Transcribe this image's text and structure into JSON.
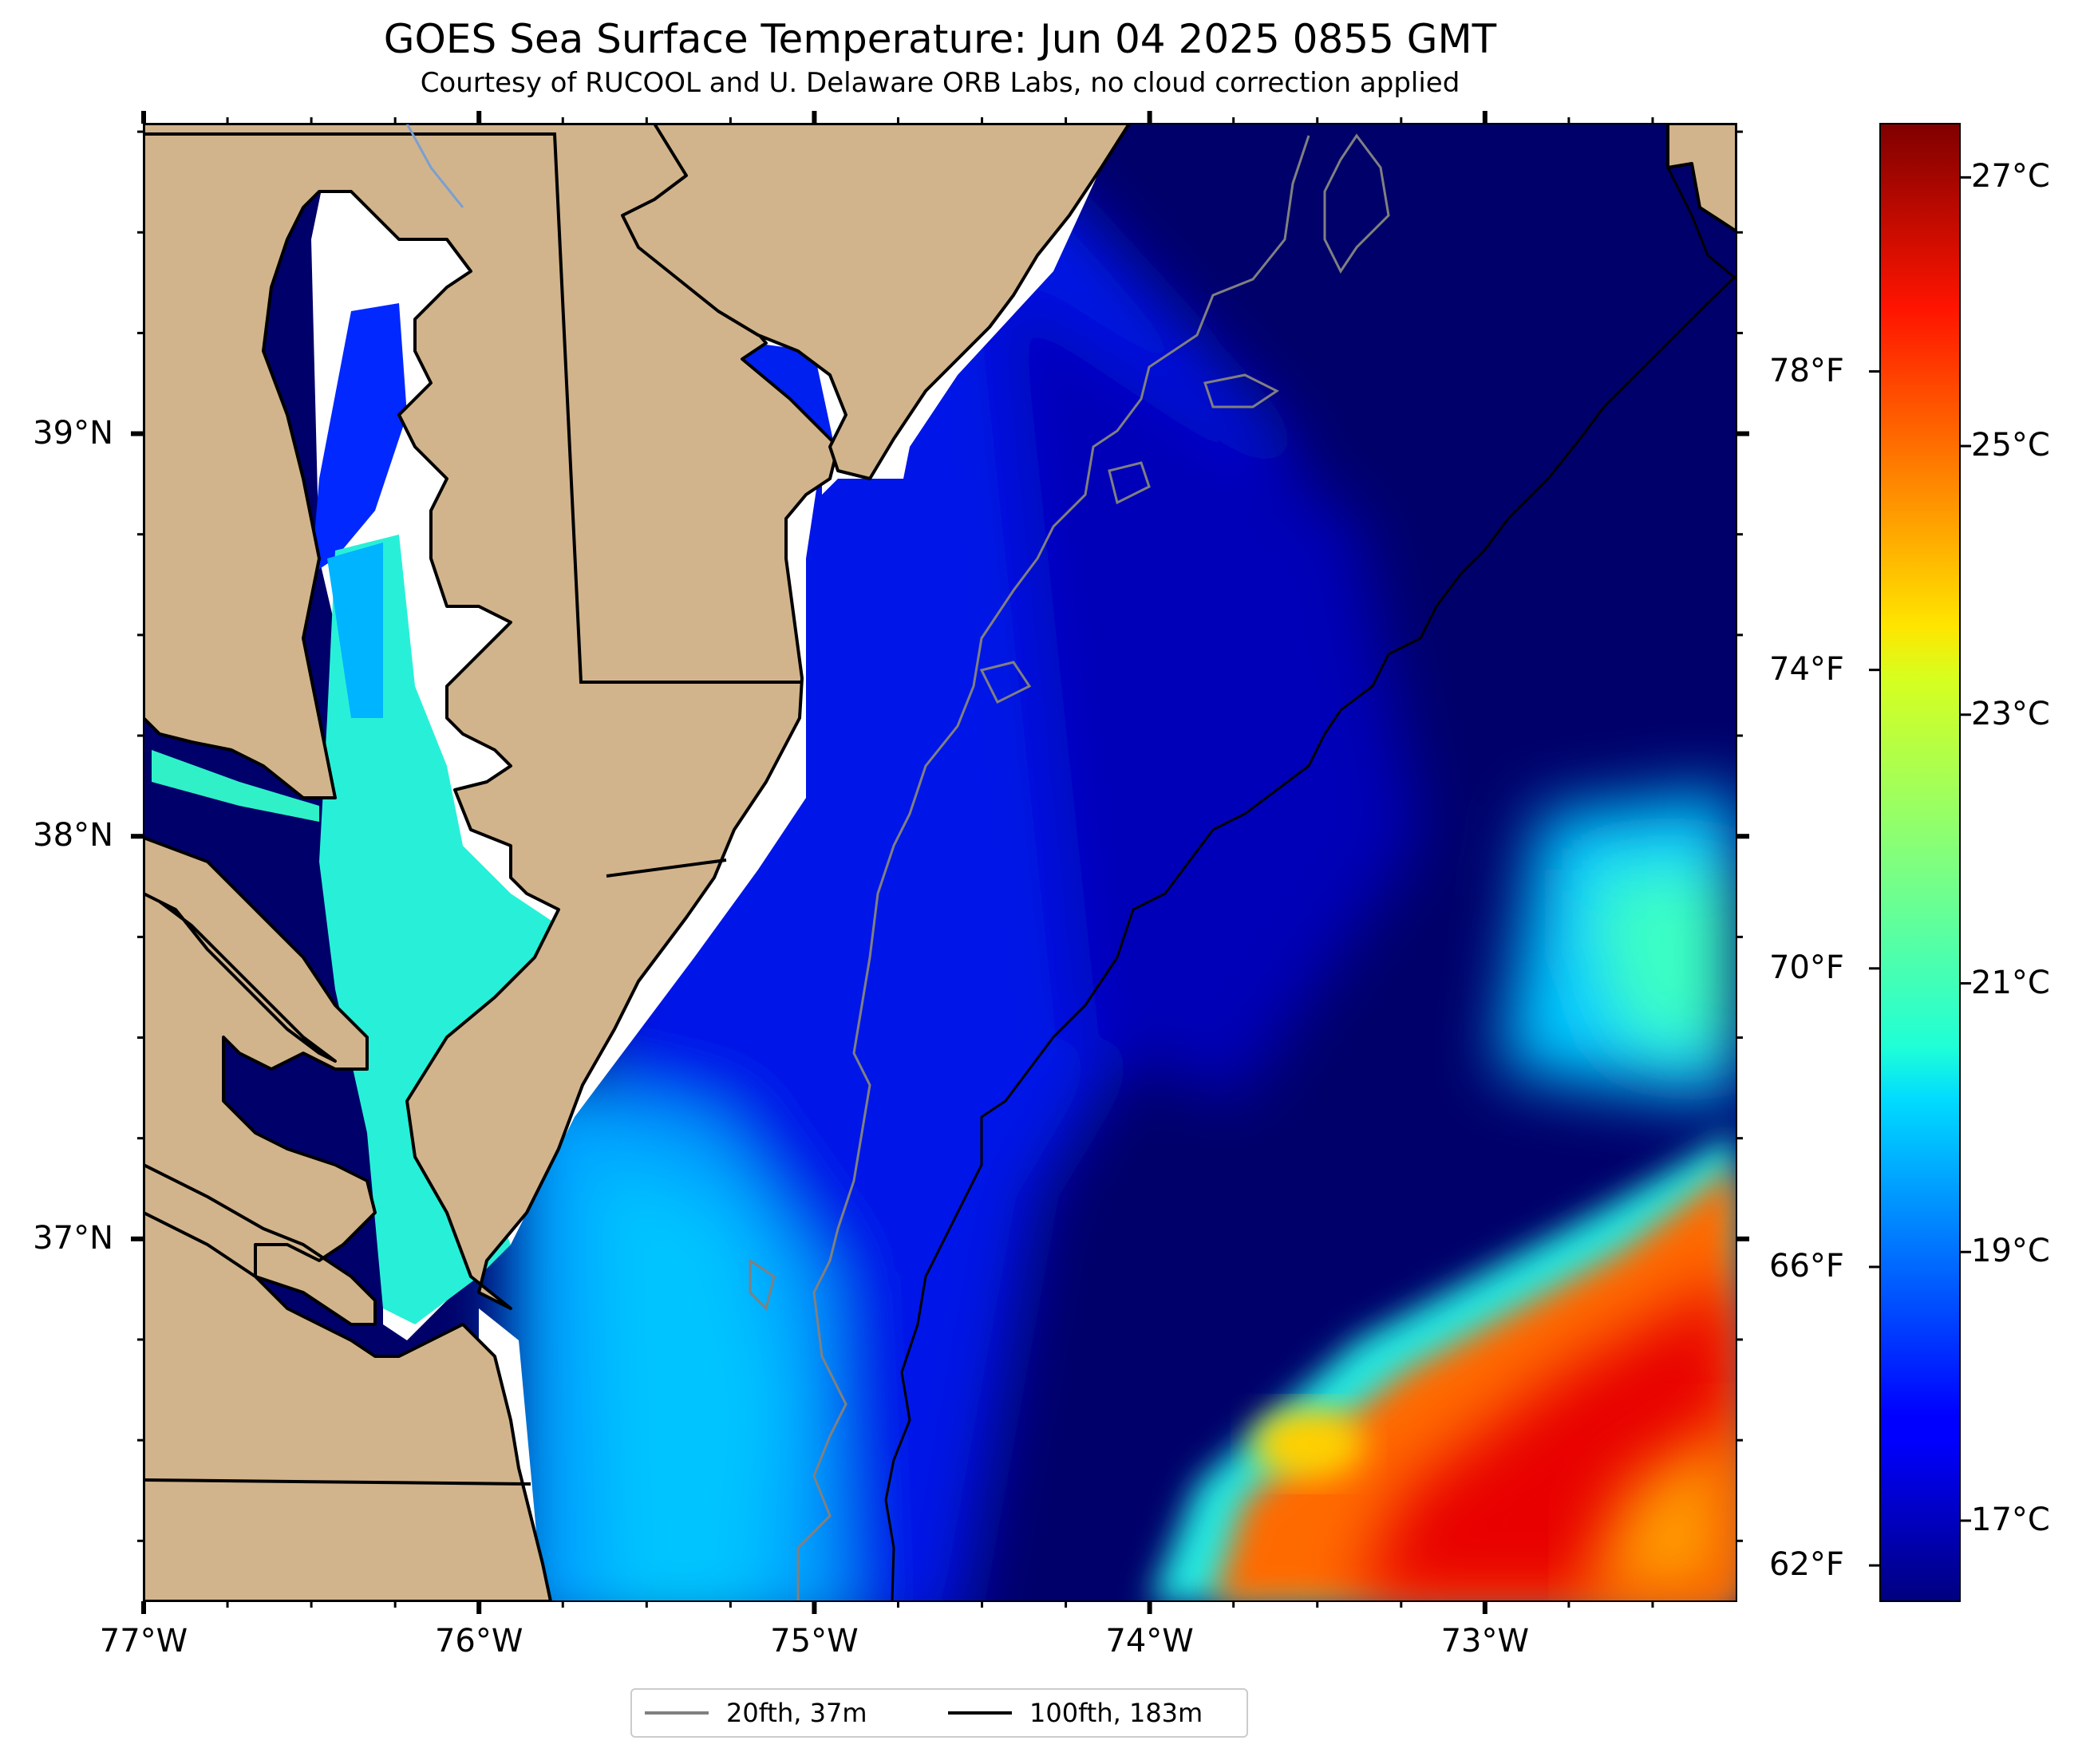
{
  "title": "GOES Sea Surface Temperature: Jun 04 2025 0855 GMT",
  "subtitle": "Courtesy of RUCOOL and U. Delaware ORB Labs, no cloud correction applied",
  "map": {
    "lon_range": [
      -77.0,
      -72.25
    ],
    "lat_range": [
      36.1,
      39.77
    ],
    "lon_ticks": [
      {
        "value": -77,
        "label": "77°W"
      },
      {
        "value": -76,
        "label": "76°W"
      },
      {
        "value": -75,
        "label": "75°W"
      },
      {
        "value": -74,
        "label": "74°W"
      },
      {
        "value": -73,
        "label": "73°W"
      }
    ],
    "lat_ticks": [
      {
        "value": 39,
        "label": "39°N"
      },
      {
        "value": 38,
        "label": "38°N"
      },
      {
        "value": 37,
        "label": "37°N"
      }
    ],
    "land_color": "#d2b48c",
    "no_data_color": "#ffffff",
    "water_regions": [
      {
        "region": "offshore shelf",
        "temp_c": 16.5
      },
      {
        "region": "mid shelf",
        "temp_c": 17.5
      },
      {
        "region": "Delaware Bay",
        "temp_c": 17.8
      },
      {
        "region": "nearshore Virginia",
        "temp_c": 19.5
      },
      {
        "region": "Chesapeake Bay",
        "temp_c": 20.5
      },
      {
        "region": "warm eddy",
        "temp_c": 20.7
      },
      {
        "region": "Gulf Stream",
        "temp_c": 26.5
      }
    ]
  },
  "colorbar": {
    "min_c": 16.4,
    "max_c": 27.4,
    "colormap": "jet",
    "celsius_ticks": [
      {
        "value": 17,
        "label": "17°C"
      },
      {
        "value": 19,
        "label": "19°C"
      },
      {
        "value": 21,
        "label": "21°C"
      },
      {
        "value": 23,
        "label": "23°C"
      },
      {
        "value": 25,
        "label": "25°C"
      },
      {
        "value": 27,
        "label": "27°C"
      }
    ],
    "fahrenheit_ticks": [
      {
        "value": 62,
        "label": "62°F"
      },
      {
        "value": 66,
        "label": "66°F"
      },
      {
        "value": 70,
        "label": "70°F"
      },
      {
        "value": 74,
        "label": "74°F"
      },
      {
        "value": 78,
        "label": "78°F"
      }
    ]
  },
  "legend": {
    "items": [
      {
        "label": "20fth, 37m",
        "color": "#808080"
      },
      {
        "label": "100fth, 183m",
        "color": "#000000"
      }
    ]
  }
}
